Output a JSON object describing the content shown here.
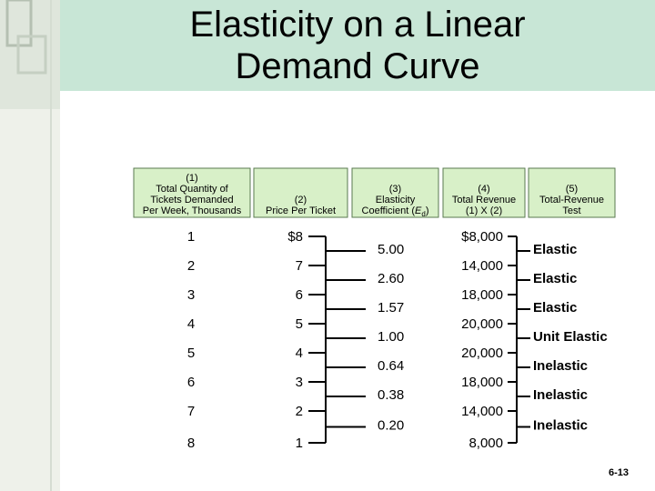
{
  "title": {
    "lines": [
      "Elasticity on a Linear",
      "Demand Curve"
    ]
  },
  "table": {
    "headers": [
      {
        "lines": [
          "(1)",
          "Total Quantity of",
          "Tickets Demanded",
          "Per Week, Thousands"
        ]
      },
      {
        "lines": [
          "(2)",
          "Price Per Ticket"
        ]
      },
      {
        "lines": [
          "(3)",
          "Elasticity"
        ],
        "formula": {
          "before": "Coefficient (",
          "symbol": "E",
          "subscript": "d",
          "after": ")"
        }
      },
      {
        "lines": [
          "(4)",
          "Total Revenue",
          "(1) X (2)"
        ]
      },
      {
        "lines": [
          "(5)",
          "Total-Revenue",
          "Test"
        ]
      }
    ],
    "rows": [
      {
        "quantity": "1",
        "price": "$8",
        "revenue": "$8,000"
      },
      {
        "quantity": "2",
        "price": "7",
        "revenue": "14,000"
      },
      {
        "quantity": "3",
        "price": "6",
        "revenue": "18,000"
      },
      {
        "quantity": "4",
        "price": "5",
        "revenue": "20,000"
      },
      {
        "quantity": "5",
        "price": "4",
        "revenue": "20,000"
      },
      {
        "quantity": "6",
        "price": "3",
        "revenue": "18,000"
      },
      {
        "quantity": "7",
        "price": "2",
        "revenue": "14,000"
      },
      {
        "quantity": "8",
        "price": "1",
        "revenue": "8,000"
      }
    ],
    "intervals": [
      {
        "coefficient": "5.00",
        "test": "Elastic"
      },
      {
        "coefficient": "2.60",
        "test": "Elastic"
      },
      {
        "coefficient": "1.57",
        "test": "Elastic"
      },
      {
        "coefficient": "1.00",
        "test": "Unit Elastic"
      },
      {
        "coefficient": "0.64",
        "test": "Inelastic"
      },
      {
        "coefficient": "0.38",
        "test": "Inelastic"
      },
      {
        "coefficient": "0.20",
        "test": "Inelastic"
      }
    ]
  },
  "footer": {
    "page": "6-13"
  }
}
